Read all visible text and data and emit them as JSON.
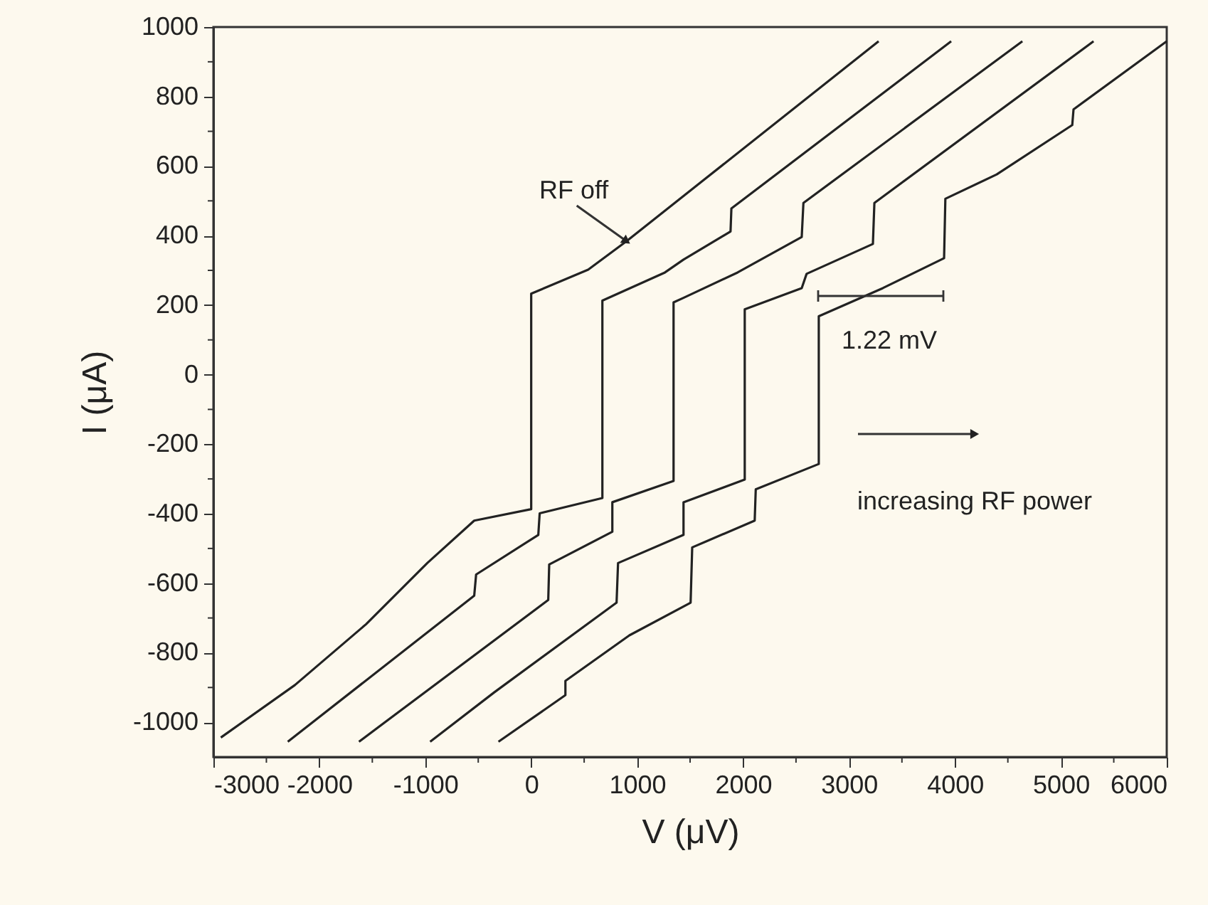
{
  "chart_data": {
    "type": "line",
    "xlabel": "V (μV)",
    "ylabel": "I (μA)",
    "xlim": [
      -3000,
      6000
    ],
    "ylim": [
      -1100,
      1000
    ],
    "xticks": [
      -3000,
      {
        "value": -2500,
        "label": null
      },
      -2000,
      {
        "value": -1500,
        "label": null
      },
      -1000,
      {
        "value": -500,
        "label": null
      },
      0,
      {
        "value": 500,
        "label": null
      },
      1000,
      {
        "value": 1500,
        "label": null
      },
      2000,
      {
        "value": 2500,
        "label": null
      },
      3000,
      {
        "value": 3500,
        "label": null
      },
      4000,
      {
        "value": 4500,
        "label": null
      },
      5000,
      {
        "value": 5500,
        "label": null
      },
      6000
    ],
    "yticks": [
      -1000,
      {
        "value": -900,
        "label": null
      },
      -800,
      {
        "value": -700,
        "label": null
      },
      -600,
      {
        "value": -500,
        "label": null
      },
      -400,
      {
        "value": -300,
        "label": null
      },
      -200,
      {
        "value": -100,
        "label": null
      },
      0,
      {
        "value": 100,
        "label": null
      },
      200,
      {
        "value": 300,
        "label": null
      },
      400,
      {
        "value": 500,
        "label": null
      },
      600,
      {
        "value": 700,
        "label": null
      },
      800,
      {
        "value": 900,
        "label": null
      },
      1000
    ],
    "grid": false,
    "marker": "none",
    "line_style": "solid",
    "series": [
      {
        "color": "#222222",
        "x": [
          -2930,
          -2231,
          -1559,
          -981,
          -538,
          0,
          0,
          538,
          900,
          3280
        ],
        "values": [
          -1044,
          -893,
          -718,
          -542,
          -420,
          -387,
          233,
          302,
          384,
          959
        ]
      },
      {
        "color": "#222222",
        "x": [
          -2298,
          -538,
          -520,
          67,
          80,
          672,
          672,
          1263,
          1438,
          1882,
          1890,
          3965
        ],
        "values": [
          -1056,
          -636,
          -575,
          -461,
          -399,
          -355,
          213,
          294,
          331,
          412,
          478,
          959
        ]
      },
      {
        "color": "#222222",
        "x": [
          -1626,
          161,
          170,
          766,
          766,
          1344,
          1344,
          1438,
          1949,
          2554,
          2570,
          4637
        ],
        "values": [
          -1056,
          -648,
          -546,
          -452,
          -367,
          -306,
          208,
          221,
          294,
          396,
          494,
          959
        ]
      },
      {
        "color": "#222222",
        "x": [
          -954,
          -349,
          806,
          820,
          1438,
          1438,
          2016,
          2016,
          2554,
          2600,
          3226,
          3240,
          5309
        ],
        "values": [
          -1056,
          -914,
          -656,
          -542,
          -461,
          -367,
          -302,
          188,
          249,
          290,
          376,
          494,
          959
        ]
      },
      {
        "color": "#222222",
        "x": [
          -309,
          323,
          323,
          927,
          1505,
          1520,
          2110,
          2120,
          2715,
          2715,
          3320,
          3898,
          3910,
          4395,
          5108,
          5120,
          6000
        ],
        "values": [
          -1056,
          -922,
          -881,
          -750,
          -656,
          -497,
          -420,
          -330,
          -257,
          168,
          249,
          335,
          506,
          576,
          718,
          763,
          959
        ]
      }
    ],
    "annotations": [
      {
        "text": "RF off",
        "x": 900,
        "y": 384
      },
      "1.22 mV",
      "increasing RF power"
    ]
  }
}
